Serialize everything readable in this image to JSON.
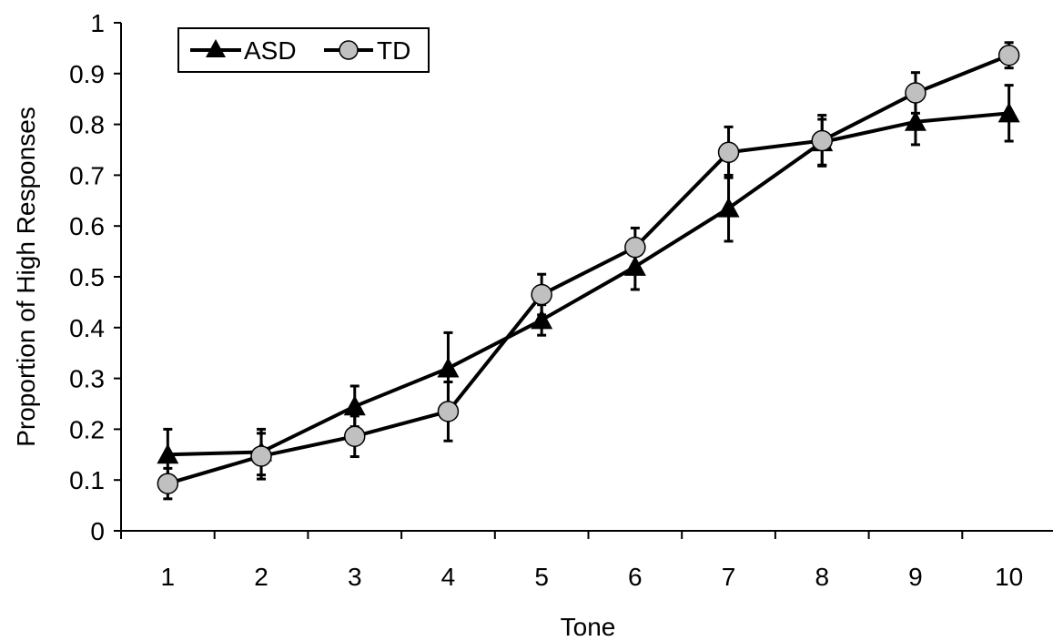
{
  "chart_data": {
    "type": "line",
    "xlabel": "Tone",
    "ylabel": "Proportion of High Responses",
    "categories": [
      "1",
      "2",
      "3",
      "4",
      "5",
      "6",
      "7",
      "8",
      "9",
      "10"
    ],
    "ylim": [
      0,
      1
    ],
    "yticks": [
      "0",
      "0.1",
      "0.2",
      "0.3",
      "0.4",
      "0.5",
      "0.6",
      "0.7",
      "0.8",
      "0.9",
      "1"
    ],
    "grid": false,
    "legend_position": "top-left",
    "series": [
      {
        "name": "ASD",
        "marker": "triangle",
        "color": "#000000",
        "values": [
          0.15,
          0.155,
          0.245,
          0.32,
          0.415,
          0.52,
          0.635,
          0.765,
          0.805,
          0.822
        ],
        "errors": [
          0.05,
          0.045,
          0.04,
          0.07,
          0.03,
          0.045,
          0.065,
          0.045,
          0.045,
          0.055
        ]
      },
      {
        "name": "TD",
        "marker": "circle",
        "color": "#c0c0c0",
        "values": [
          0.093,
          0.147,
          0.186,
          0.235,
          0.465,
          0.558,
          0.745,
          0.768,
          0.862,
          0.936
        ],
        "errors": [
          0.03,
          0.045,
          0.04,
          0.058,
          0.04,
          0.038,
          0.05,
          0.05,
          0.04,
          0.025
        ]
      }
    ]
  }
}
